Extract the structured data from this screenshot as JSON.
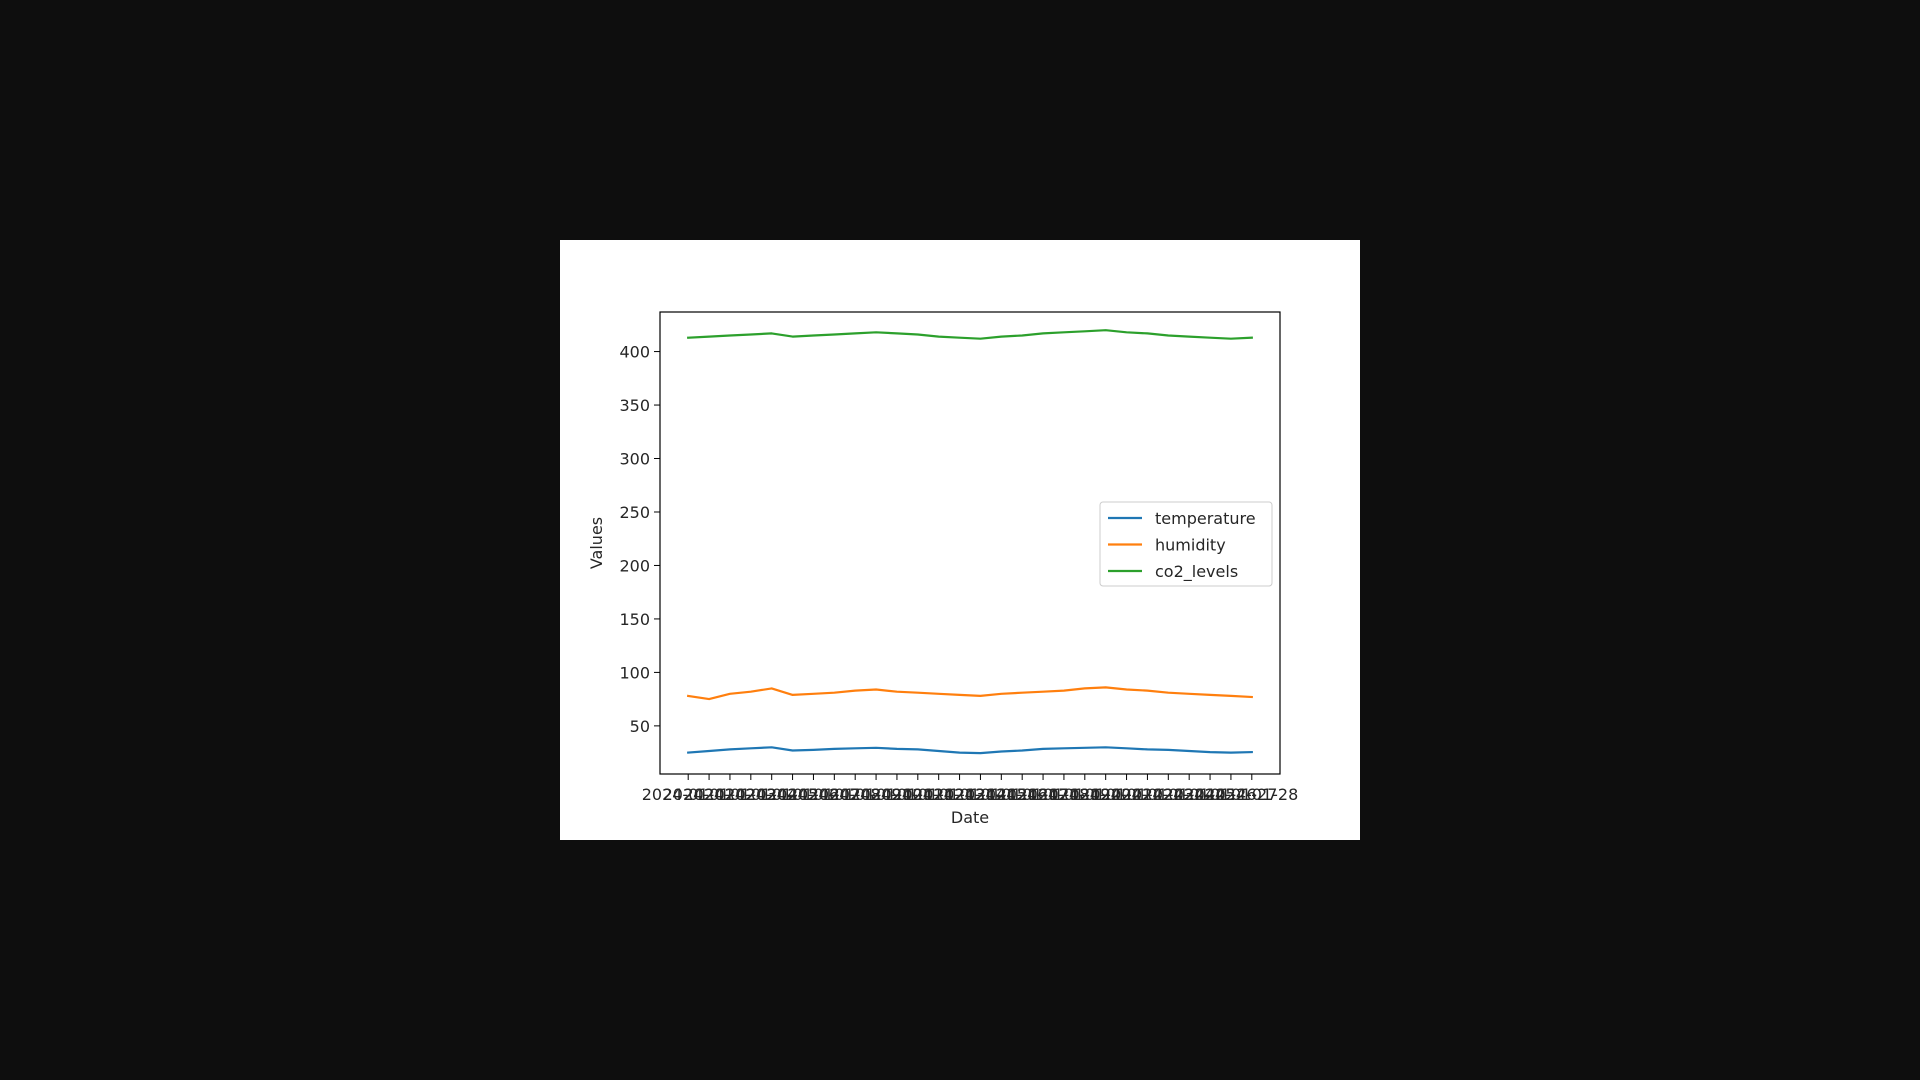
{
  "chart_data": {
    "type": "line",
    "title": "",
    "xlabel": "Date",
    "ylabel": "Values",
    "x": [
      "2024-01-01",
      "2024-01-02",
      "2024-01-03",
      "2024-01-04",
      "2024-01-05",
      "2024-01-06",
      "2024-01-07",
      "2024-01-08",
      "2024-01-09",
      "2024-01-10",
      "2024-01-11",
      "2024-01-12",
      "2024-01-13",
      "2024-01-14",
      "2024-01-15",
      "2024-01-16",
      "2024-01-17",
      "2024-01-18",
      "2024-01-19",
      "2024-01-20",
      "2024-01-21",
      "2024-01-22",
      "2024-01-23",
      "2024-01-24",
      "2024-01-25",
      "2024-01-26",
      "2024-01-27",
      "2024-01-28"
    ],
    "ylim": [
      5,
      437
    ],
    "yticks": [
      50,
      100,
      150,
      200,
      250,
      300,
      350,
      400
    ],
    "grid": false,
    "legend_position": "center-right",
    "series": [
      {
        "name": "temperature",
        "color": "#1f77b4",
        "values": [
          25.0,
          26.5,
          28.0,
          29.0,
          30.0,
          27.0,
          27.5,
          28.5,
          29.0,
          29.5,
          28.5,
          28.0,
          26.5,
          25.0,
          24.5,
          26.0,
          27.0,
          28.5,
          29.0,
          29.5,
          30.0,
          29.0,
          28.0,
          27.5,
          26.5,
          25.5,
          25.0,
          25.5
        ]
      },
      {
        "name": "humidity",
        "color": "#ff7f0e",
        "values": [
          78.0,
          75.0,
          80.0,
          82.0,
          85.0,
          79.0,
          80.0,
          81.0,
          83.0,
          84.0,
          82.0,
          81.0,
          80.0,
          79.0,
          78.0,
          80.0,
          81.0,
          82.0,
          83.0,
          85.0,
          86.0,
          84.0,
          83.0,
          81.0,
          80.0,
          79.0,
          78.0,
          77.0
        ]
      },
      {
        "name": "co2_levels",
        "color": "#2ca02c",
        "values": [
          413.0,
          414.0,
          415.0,
          416.0,
          417.0,
          414.0,
          415.0,
          416.0,
          417.0,
          418.0,
          417.0,
          416.0,
          414.0,
          413.0,
          412.0,
          414.0,
          415.0,
          417.0,
          418.0,
          419.0,
          420.0,
          418.0,
          417.0,
          415.0,
          414.0,
          413.0,
          412.0,
          413.0
        ]
      }
    ]
  }
}
